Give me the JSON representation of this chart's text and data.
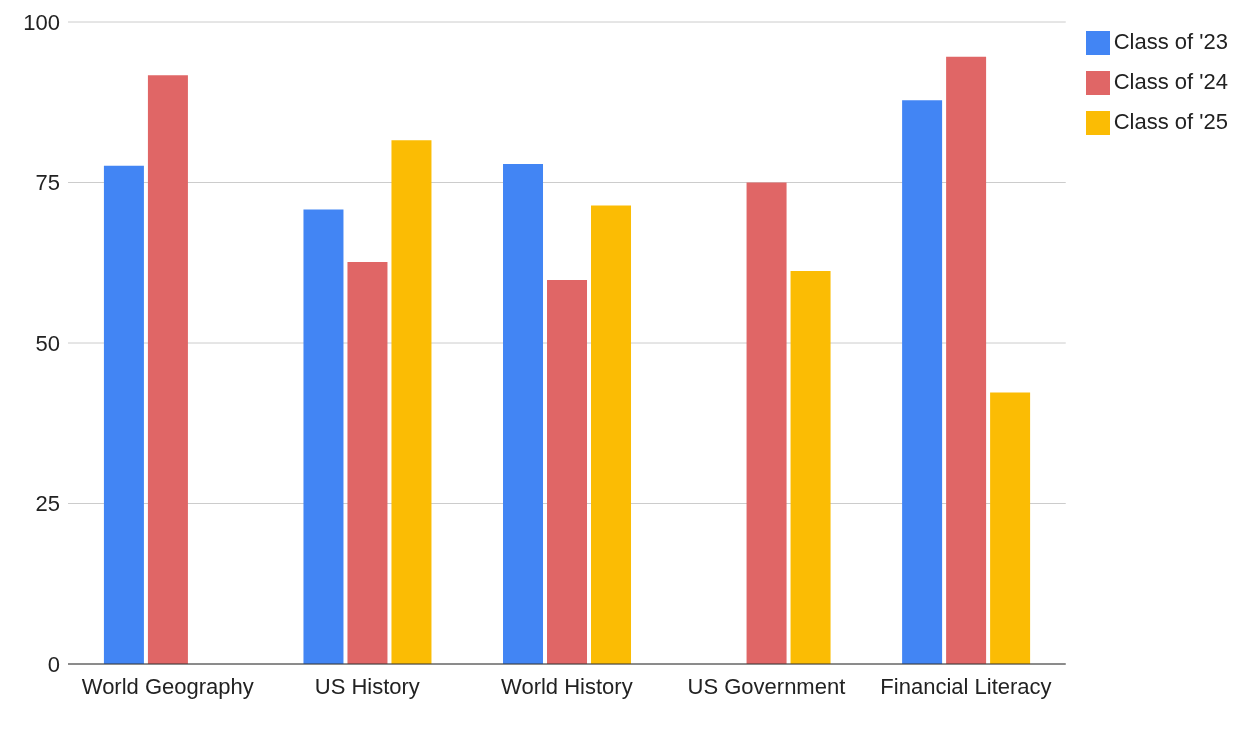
{
  "chart_data": {
    "type": "bar",
    "categories": [
      "World Geography",
      "US History",
      "World History",
      "US Government",
      "Financial Literacy"
    ],
    "series": [
      {
        "name": "Class of '23",
        "color": "#4285f4",
        "values": [
          77.6,
          70.8,
          77.9,
          null,
          87.8
        ]
      },
      {
        "name": "Class of '24",
        "color": "#e06666",
        "values": [
          91.7,
          62.6,
          59.8,
          75.0,
          94.6
        ]
      },
      {
        "name": "Class of '25",
        "color": "#fbbc04",
        "values": [
          null,
          81.6,
          71.4,
          61.2,
          42.3
        ]
      }
    ],
    "ylim": [
      0,
      100
    ],
    "yticks": [
      0,
      25,
      50,
      75,
      100
    ],
    "grid": "y",
    "legend": "top right"
  }
}
